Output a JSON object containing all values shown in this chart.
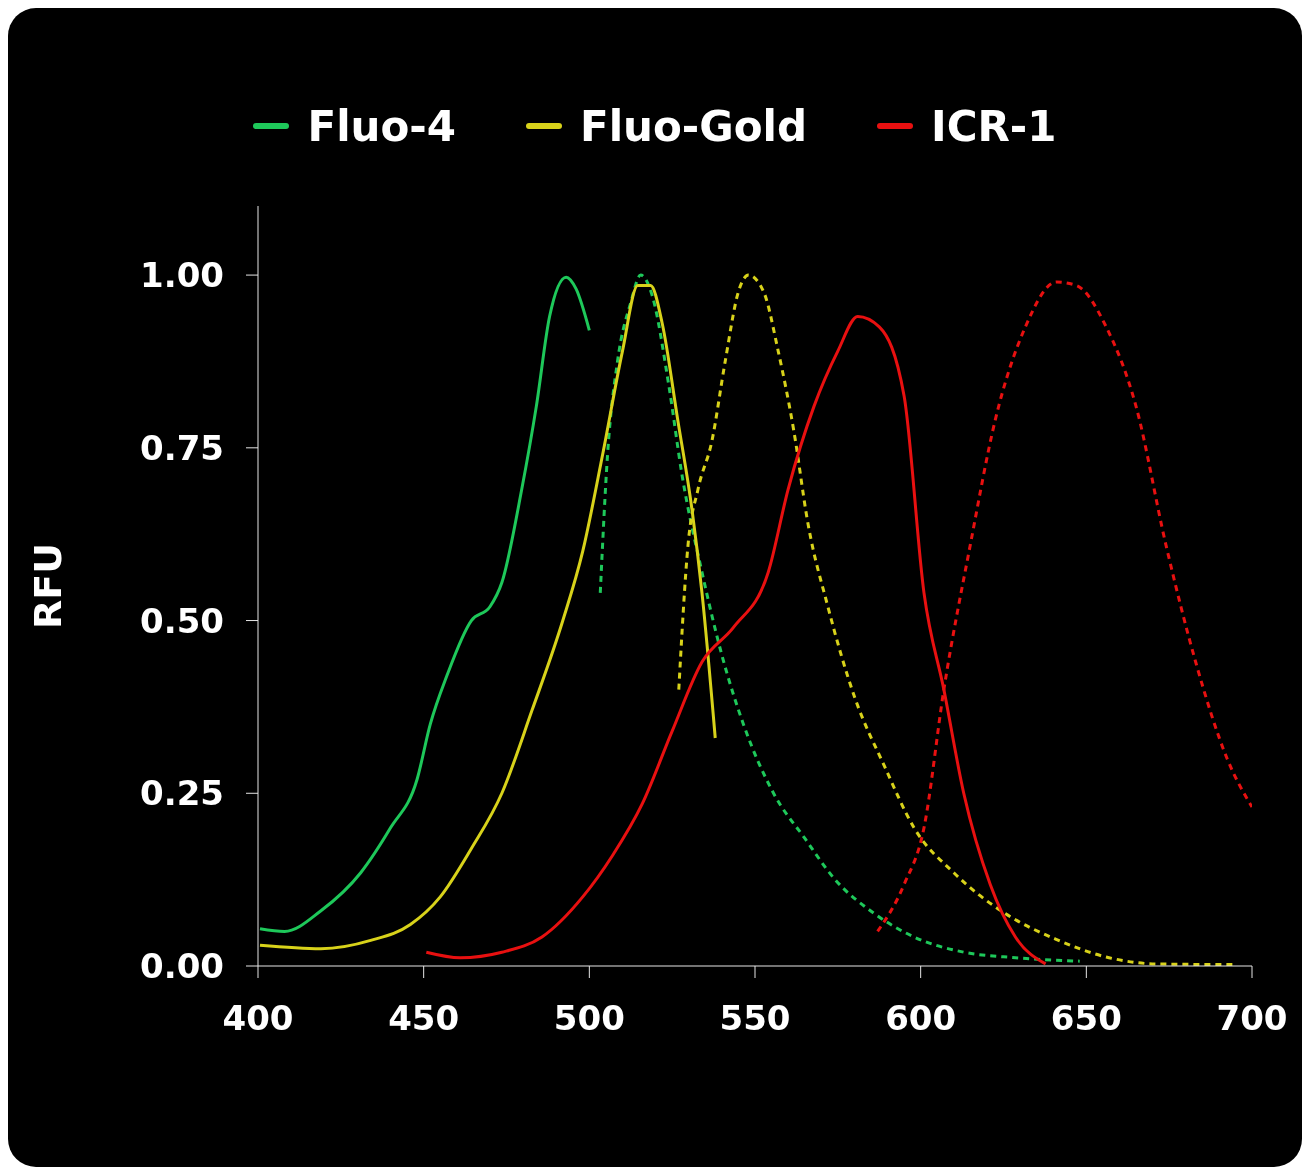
{
  "chart_data": {
    "type": "line",
    "ylabel": "RFU",
    "xlim": [
      400,
      700
    ],
    "xticks": [
      400,
      450,
      500,
      550,
      600,
      650,
      700
    ],
    "ylim": [
      0,
      1.1
    ],
    "yticks": [
      {
        "value": 0,
        "label": "0.00"
      },
      {
        "value": 0.25,
        "label": "0.25"
      },
      {
        "value": 0.5,
        "label": "0.50"
      },
      {
        "value": 0.75,
        "label": "0.75"
      },
      {
        "value": 1,
        "label": "1.00"
      }
    ],
    "grid": false,
    "legend": "top",
    "marker": "none",
    "series": [
      {
        "name": "Fluo-4",
        "color": "#1ec85a",
        "line_style": "solid",
        "x": [
          400.6,
          408,
          419,
          431,
          440,
          448,
          452,
          457,
          464.4,
          470,
          473.6,
          479.6,
          484,
          488,
          493,
          496,
          500
        ],
        "values": [
          0.054,
          0.05,
          0.08,
          0.135,
          0.2,
          0.27,
          0.35,
          0.42,
          0.5,
          0.52,
          0.555,
          0.69,
          0.81,
          0.94,
          0.997,
          0.98,
          0.92
        ]
      },
      {
        "color": "#1ec85a",
        "line_style": "dashed",
        "x": [
          503.3,
          505.5,
          508.5,
          512.5,
          515.5,
          519,
          524,
          528,
          534,
          540,
          546.5,
          555.6,
          565,
          574,
          586,
          598,
          613,
          628.6,
          648
        ],
        "values": [
          0.54,
          0.74,
          0.875,
          0.96,
          1.0,
          0.97,
          0.84,
          0.71,
          0.57,
          0.45,
          0.35,
          0.25,
          0.185,
          0.126,
          0.076,
          0.042,
          0.02,
          0.012,
          0.007
        ]
      },
      {
        "name": "Fluo-Gold",
        "color": "#d8d21a",
        "line_style": "solid",
        "x": [
          400.6,
          419,
          434,
          446,
          455,
          464.4,
          473.6,
          482.7,
          492,
          498,
          504,
          510,
          514.6,
          518.5,
          522,
          526.7,
          531,
          534,
          538
        ],
        "values": [
          0.03,
          0.025,
          0.037,
          0.06,
          0.1,
          0.17,
          0.25,
          0.37,
          0.5,
          0.6,
          0.74,
          0.89,
          0.985,
          0.985,
          0.93,
          0.79,
          0.66,
          0.54,
          0.33
        ]
      },
      {
        "color": "#d8d21a",
        "line_style": "dashed",
        "x": [
          527,
          529.8,
          532.8,
          537,
          541,
          545,
          548,
          552.6,
          557,
          561.7,
          566,
          572,
          580,
          589,
          598,
          610,
          625.5,
          640.7,
          656,
          671,
          695
        ],
        "values": [
          0.4,
          0.61,
          0.69,
          0.76,
          0.875,
          0.976,
          1.0,
          0.976,
          0.89,
          0.775,
          0.64,
          0.52,
          0.39,
          0.29,
          0.2,
          0.135,
          0.076,
          0.039,
          0.013,
          0.003,
          0.002
        ]
      },
      {
        "name": "ICR-1",
        "color": "#e81010",
        "line_style": "solid",
        "x": [
          450.8,
          461,
          473.6,
          485.7,
          498,
          507,
          516,
          525,
          534,
          543.5,
          554,
          560,
          567.8,
          575,
          581,
          587.5,
          595,
          601,
          607,
          613,
          621,
          628.6,
          637.7
        ],
        "values": [
          0.02,
          0.012,
          0.02,
          0.042,
          0.1,
          0.16,
          0.235,
          0.34,
          0.44,
          0.49,
          0.57,
          0.69,
          0.81,
          0.89,
          0.94,
          0.925,
          0.825,
          0.54,
          0.4,
          0.25,
          0.118,
          0.042,
          0.003
        ]
      },
      {
        "color": "#e81010",
        "line_style": "dashed",
        "x": [
          587,
          595,
          601,
          607,
          615,
          622.5,
          631.6,
          641,
          647,
          656,
          665,
          674,
          683,
          692.5,
          700
        ],
        "values": [
          0.05,
          0.118,
          0.2,
          0.4,
          0.61,
          0.79,
          0.925,
          0.99,
          0.985,
          0.925,
          0.81,
          0.61,
          0.44,
          0.3,
          0.23
        ]
      }
    ]
  }
}
